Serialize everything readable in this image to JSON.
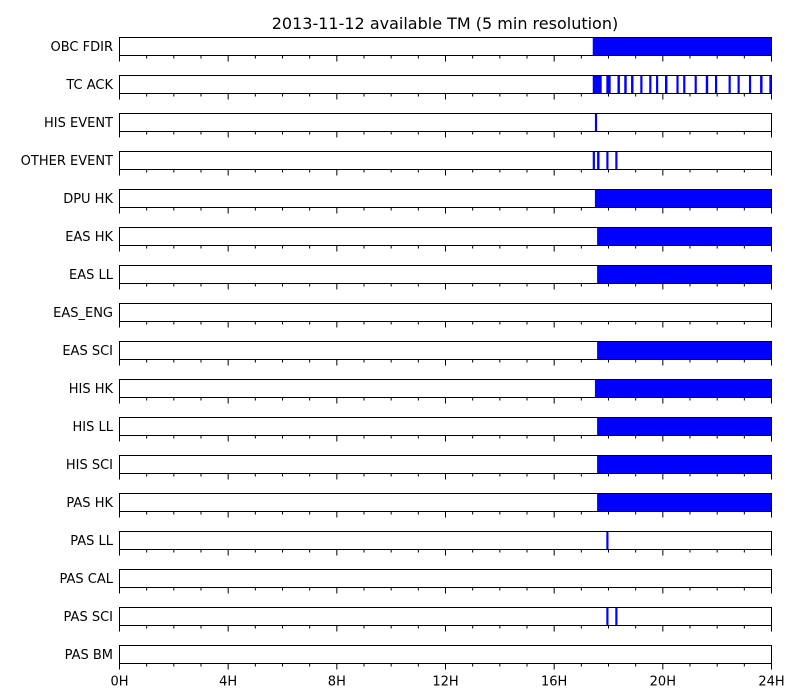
{
  "chart_data": {
    "type": "bar",
    "title": "2013-11-12 available TM (5 min resolution)",
    "xlabel": "",
    "ylabel": "",
    "xlim": [
      0,
      24
    ],
    "x_unit": "hours",
    "grid": false,
    "bar_color": "#0000ff",
    "x_ticks": [
      {
        "value": 0,
        "label": "0H"
      },
      {
        "value": 4,
        "label": "4H"
      },
      {
        "value": 8,
        "label": "8H"
      },
      {
        "value": 12,
        "label": "12H"
      },
      {
        "value": 16,
        "label": "16H"
      },
      {
        "value": 20,
        "label": "20H"
      },
      {
        "value": 24,
        "label": "24H"
      }
    ],
    "minor_tick_step": 1,
    "rows": [
      {
        "name": "OBC FDIR",
        "intervals": [
          [
            17.42,
            24.0
          ]
        ]
      },
      {
        "name": "TC ACK",
        "intervals": [
          [
            17.42,
            17.75
          ],
          [
            17.92,
            18.08
          ],
          [
            18.33,
            18.42
          ],
          [
            18.58,
            18.67
          ],
          [
            18.83,
            18.92
          ],
          [
            19.17,
            19.25
          ],
          [
            19.5,
            19.58
          ],
          [
            19.75,
            19.83
          ],
          [
            20.08,
            20.17
          ],
          [
            20.5,
            20.58
          ],
          [
            20.75,
            20.83
          ],
          [
            21.17,
            21.25
          ],
          [
            21.58,
            21.67
          ],
          [
            21.92,
            22.0
          ],
          [
            22.42,
            22.5
          ],
          [
            22.75,
            22.83
          ],
          [
            23.17,
            23.25
          ],
          [
            23.58,
            23.67
          ],
          [
            23.92,
            24.0
          ]
        ]
      },
      {
        "name": "HIS EVENT",
        "intervals": [
          [
            17.5,
            17.58
          ]
        ]
      },
      {
        "name": "OTHER EVENT",
        "intervals": [
          [
            17.42,
            17.5
          ],
          [
            17.58,
            17.67
          ],
          [
            17.92,
            18.0
          ],
          [
            18.25,
            18.33
          ]
        ]
      },
      {
        "name": "DPU HK",
        "intervals": [
          [
            17.5,
            24.0
          ]
        ]
      },
      {
        "name": "EAS HK",
        "intervals": [
          [
            17.58,
            24.0
          ]
        ]
      },
      {
        "name": "EAS LL",
        "intervals": [
          [
            17.58,
            24.0
          ]
        ]
      },
      {
        "name": "EAS_ENG",
        "intervals": []
      },
      {
        "name": "EAS SCI",
        "intervals": [
          [
            17.58,
            24.0
          ]
        ]
      },
      {
        "name": "HIS HK",
        "intervals": [
          [
            17.5,
            24.0
          ]
        ]
      },
      {
        "name": "HIS LL",
        "intervals": [
          [
            17.58,
            24.0
          ]
        ]
      },
      {
        "name": "HIS SCI",
        "intervals": [
          [
            17.58,
            24.0
          ]
        ]
      },
      {
        "name": "PAS HK",
        "intervals": [
          [
            17.58,
            24.0
          ]
        ]
      },
      {
        "name": "PAS LL",
        "intervals": [
          [
            17.92,
            18.0
          ]
        ]
      },
      {
        "name": "PAS CAL",
        "intervals": []
      },
      {
        "name": "PAS SCI",
        "intervals": [
          [
            17.92,
            18.0
          ],
          [
            18.25,
            18.33
          ]
        ]
      },
      {
        "name": "PAS BM",
        "intervals": []
      }
    ]
  }
}
